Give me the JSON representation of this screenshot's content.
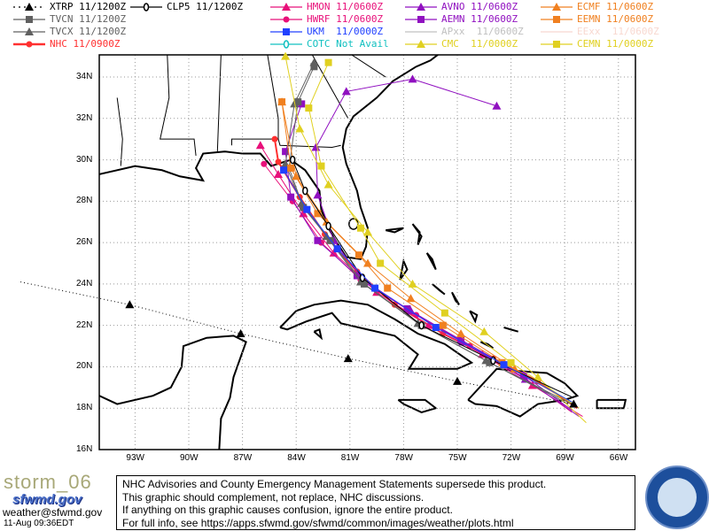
{
  "legend": [
    {
      "id": "xtrp",
      "label": "XTRP 11/1200Z",
      "color": "#000000",
      "marker": "triangle",
      "dash": true
    },
    {
      "id": "tvcn",
      "label": "TVCN 11/1200Z",
      "color": "#606060",
      "marker": "square"
    },
    {
      "id": "tvcx",
      "label": "TVCX 11/1200Z",
      "color": "#606060",
      "marker": "triangle"
    },
    {
      "id": "nhc",
      "label": "NHC 11/0900Z",
      "color": "#ff3030",
      "marker": "dot"
    },
    {
      "id": "clp5",
      "label": "CLP5 11/1200Z",
      "color": "#000000",
      "marker": "circle"
    },
    {
      "id": "hmon",
      "label": "HMON 11/0600Z",
      "color": "#e8107a",
      "marker": "triangle"
    },
    {
      "id": "hwrf",
      "label": "HWRF 11/0600Z",
      "color": "#e8107a",
      "marker": "dot"
    },
    {
      "id": "ukm",
      "label": "UKM  11/0000Z",
      "color": "#2040ff",
      "marker": "square"
    },
    {
      "id": "cotc",
      "label": "COTC Not Avail",
      "color": "#10c0c0",
      "marker": "circle"
    },
    {
      "id": "avno",
      "label": "AVNO 11/0600Z",
      "color": "#9010c0",
      "marker": "triangle"
    },
    {
      "id": "aemn",
      "label": "AEMN 11/0600Z",
      "color": "#9010c0",
      "marker": "square"
    },
    {
      "id": "apxx",
      "label": "APxx  11/0600Z",
      "color": "#c0c0c0",
      "marker": "none"
    },
    {
      "id": "cmc",
      "label": "CMC  11/0000Z",
      "color": "#e0d020",
      "marker": "triangle"
    },
    {
      "id": "ecmf",
      "label": "ECMF 11/0600Z",
      "color": "#f08020",
      "marker": "triangle"
    },
    {
      "id": "eemn",
      "label": "EEMN 11/0600Z",
      "color": "#f08020",
      "marker": "square"
    },
    {
      "id": "eexx",
      "label": "EExx  11/0600Z",
      "color": "#f8d8d0",
      "marker": "none"
    },
    {
      "id": "cemn",
      "label": "CEMN 11/0000Z",
      "color": "#e0d020",
      "marker": "square"
    }
  ],
  "axes": {
    "lon_labels": [
      "93W",
      "90W",
      "87W",
      "84W",
      "81W",
      "78W",
      "75W",
      "72W",
      "69W",
      "66W"
    ],
    "lon_values": [
      -93,
      -90,
      -87,
      -84,
      -81,
      -78,
      -75,
      -72,
      -69,
      -66
    ],
    "lat_labels": [
      "34N",
      "32N",
      "30N",
      "28N",
      "26N",
      "24N",
      "22N",
      "20N",
      "18N",
      "16N"
    ],
    "lat_values": [
      34,
      32,
      30,
      28,
      26,
      24,
      22,
      20,
      18,
      16
    ],
    "lon_range": [
      -95,
      -65.05
    ],
    "lat_range": [
      16,
      35.07
    ]
  },
  "tracks": {
    "xtrp": [
      [
        24.1,
        -99.4
      ],
      [
        23.0,
        -93.3
      ],
      [
        21.6,
        -87.1
      ],
      [
        20.4,
        -81.1
      ],
      [
        19.3,
        -75.0
      ],
      [
        18.2,
        -68.5
      ]
    ],
    "nhc": [
      [
        18.0,
        -68.3
      ],
      [
        19.3,
        -70.5
      ],
      [
        20.4,
        -73.0
      ],
      [
        21.6,
        -75.8
      ],
      [
        23.0,
        -78.5
      ],
      [
        24.6,
        -80.6
      ],
      [
        26.4,
        -82.4
      ],
      [
        28.2,
        -83.8
      ],
      [
        29.9,
        -85.0
      ],
      [
        31.0,
        -85.2
      ]
    ],
    "hmon": [
      [
        17.6,
        -68.0
      ],
      [
        19.1,
        -70.8
      ],
      [
        20.6,
        -73.6
      ],
      [
        22.0,
        -76.6
      ],
      [
        23.6,
        -79.5
      ],
      [
        25.5,
        -81.9
      ],
      [
        27.4,
        -83.6
      ],
      [
        29.3,
        -85.0
      ],
      [
        30.7,
        -86.0
      ]
    ],
    "hwrf": [
      [
        17.8,
        -68.6
      ],
      [
        19.5,
        -71.3
      ],
      [
        21.0,
        -74.3
      ],
      [
        22.5,
        -77.3
      ],
      [
        24.2,
        -80.4
      ],
      [
        26.0,
        -82.6
      ],
      [
        28.0,
        -84.2
      ],
      [
        29.8,
        -85.8
      ]
    ],
    "avno": [
      [
        17.6,
        -68.2
      ],
      [
        19.4,
        -71.2
      ],
      [
        21.2,
        -74.7
      ],
      [
        22.7,
        -77.6
      ],
      [
        24.1,
        -80.2
      ],
      [
        26.1,
        -81.9
      ],
      [
        28.3,
        -82.8
      ],
      [
        30.6,
        -82.9
      ],
      [
        33.3,
        -81.2
      ],
      [
        33.9,
        -77.5
      ],
      [
        32.6,
        -72.8
      ]
    ],
    "aemn": [
      [
        17.9,
        -68.6
      ],
      [
        19.6,
        -71.3
      ],
      [
        21.3,
        -74.8
      ],
      [
        22.8,
        -77.8
      ],
      [
        24.4,
        -80.6
      ],
      [
        26.1,
        -82.8
      ],
      [
        28.2,
        -84.3
      ],
      [
        30.4,
        -84.6
      ],
      [
        32.7,
        -83.7
      ]
    ],
    "tvcn": [
      [
        18.2,
        -68.6
      ],
      [
        20.2,
        -73.2
      ],
      [
        22.0,
        -77.0
      ],
      [
        24.0,
        -80.2
      ],
      [
        26.1,
        -82.1
      ],
      [
        27.7,
        -83.6
      ],
      [
        29.6,
        -84.4
      ],
      [
        32.8,
        -83.9
      ],
      [
        34.5,
        -83.0
      ]
    ],
    "tvcx": [
      [
        18.2,
        -68.8
      ],
      [
        20.3,
        -73.4
      ],
      [
        22.1,
        -77.2
      ],
      [
        24.1,
        -80.4
      ],
      [
        26.3,
        -82.3
      ],
      [
        27.9,
        -83.7
      ],
      [
        29.8,
        -84.6
      ],
      [
        32.7,
        -84.1
      ],
      [
        34.7,
        -83.0
      ]
    ],
    "ecmf": [
      [
        18.3,
        -68.7
      ],
      [
        19.9,
        -71.8
      ],
      [
        21.6,
        -74.8
      ],
      [
        23.3,
        -77.6
      ],
      [
        25.0,
        -80.0
      ],
      [
        27.0,
        -82.3
      ],
      [
        29.2,
        -84.0
      ],
      [
        32.8,
        -84.8
      ]
    ],
    "eemn": [
      [
        18.4,
        -68.9
      ],
      [
        20.2,
        -72.5
      ],
      [
        22.0,
        -75.8
      ],
      [
        23.8,
        -78.9
      ],
      [
        25.4,
        -80.5
      ],
      [
        27.4,
        -82.8
      ],
      [
        29.6,
        -84.3
      ],
      [
        32.8,
        -84.8
      ]
    ],
    "cmc": [
      [
        17.3,
        -67.8
      ],
      [
        19.5,
        -70.5
      ],
      [
        21.7,
        -73.5
      ],
      [
        24.0,
        -77.5
      ],
      [
        26.5,
        -80.0
      ],
      [
        28.8,
        -82.2
      ],
      [
        31.5,
        -83.8
      ],
      [
        35.0,
        -84.6
      ]
    ],
    "cemn": [
      [
        18.0,
        -68.2
      ],
      [
        20.2,
        -72.0
      ],
      [
        22.6,
        -75.7
      ],
      [
        25.0,
        -79.3
      ],
      [
        26.7,
        -80.4
      ],
      [
        29.7,
        -82.6
      ],
      [
        32.5,
        -83.3
      ],
      [
        34.7,
        -82.2
      ]
    ],
    "clp5": [
      [
        18.5,
        -68.5
      ],
      [
        20.3,
        -73.0
      ],
      [
        22.0,
        -77.0
      ],
      [
        24.3,
        -80.3
      ],
      [
        26.8,
        -82.2
      ],
      [
        28.5,
        -83.5
      ],
      [
        30.0,
        -84.2
      ]
    ],
    "ukm": [
      [
        18.3,
        -68.6
      ],
      [
        20.1,
        -72.4
      ],
      [
        21.9,
        -76.2
      ],
      [
        23.8,
        -79.6
      ],
      [
        25.7,
        -81.7
      ],
      [
        27.6,
        -83.4
      ],
      [
        29.5,
        -84.7
      ]
    ]
  },
  "footer": {
    "storm_id": "storm_06",
    "site_logo_text": "sfwmd.gov",
    "email": "weather@sfwmd.gov",
    "timestamp": "11-Aug 09:36EDT",
    "disclaimer": [
      "NHC Advisories and County Emergency Management Statements supersede this product.",
      "This graphic should complement, not replace, NHC discussions.",
      "If anything on this graphic causes confusion, ignore the entire product.",
      "For full info, see  https://apps.sfwmd.gov/sfwmd/common/images/weather/plots.html"
    ],
    "seal_text": "SOUTH FLORIDA WATER MANAGEMENT DISTRICT"
  }
}
